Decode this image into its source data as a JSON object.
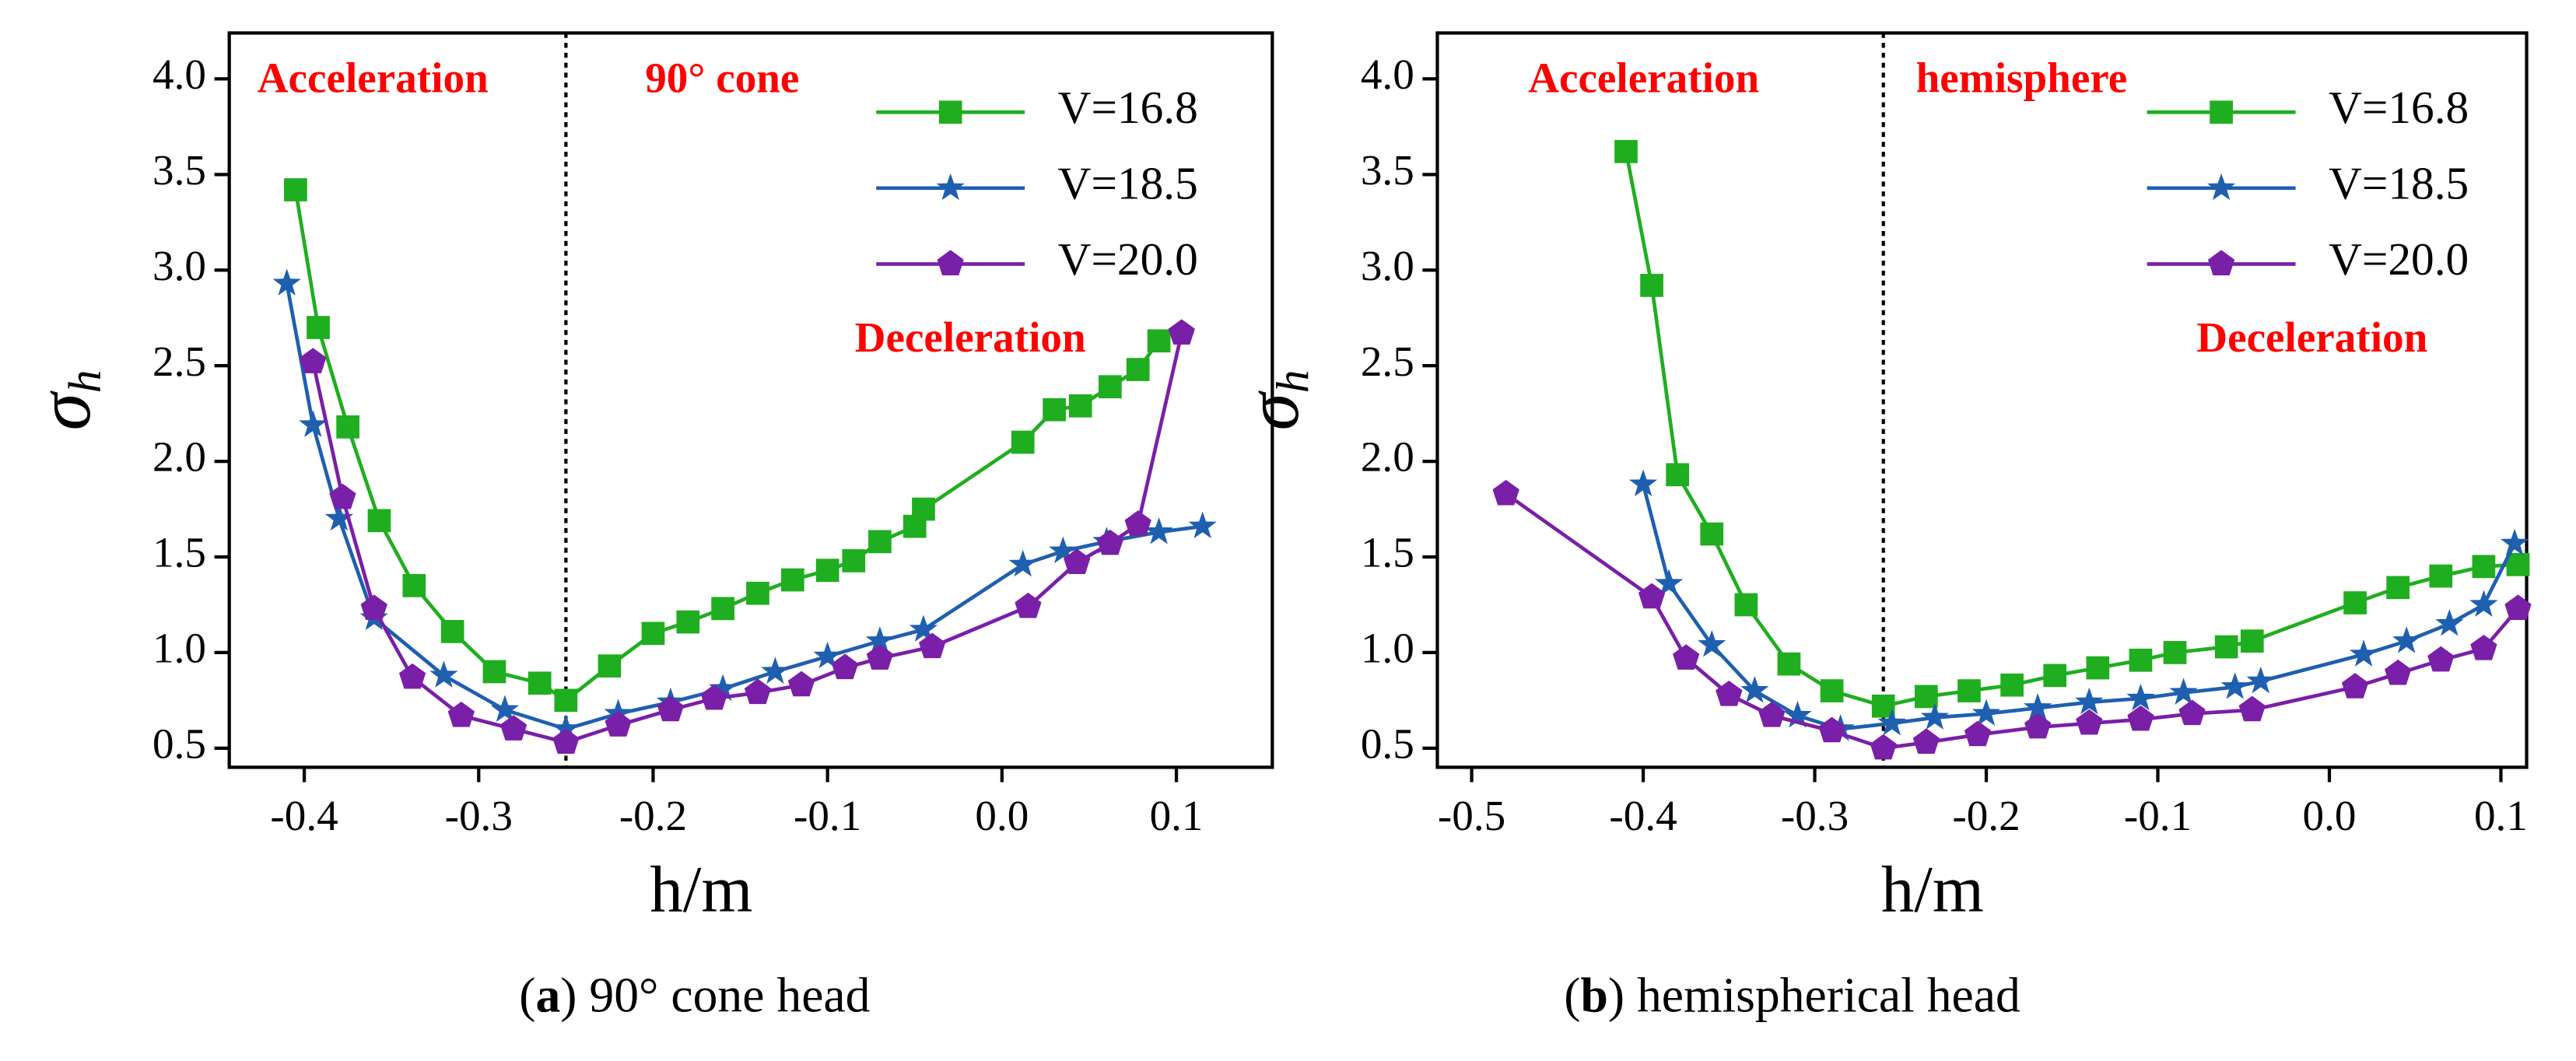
{
  "chart_data": [
    {
      "type": "line",
      "caption": [
        "(",
        "a",
        ") 90° cone head"
      ],
      "xlabel": "h/m",
      "ylabel": {
        "symbol": "σ",
        "subscript": "h"
      },
      "annotations": [
        "Acceleration",
        "90° cone",
        "Deceleration"
      ],
      "vline": -0.25,
      "xlim": [
        -0.443,
        0.155
      ],
      "ylim": [
        0.4,
        4.24
      ],
      "xticks": [
        -0.4,
        -0.3,
        -0.2,
        -0.1,
        {
          "value": 0,
          "label": "0.0"
        },
        0.1
      ],
      "yticks": [
        0.5,
        {
          "value": 1,
          "label": "1.0"
        },
        1.5,
        {
          "value": 2,
          "label": "2.0"
        },
        2.5,
        {
          "value": 3,
          "label": "3.0"
        },
        3.5,
        {
          "value": 4,
          "label": "4.0"
        }
      ],
      "legend": "upper right",
      "series": [
        {
          "name": "V=16.8",
          "color": "#1fae1f",
          "marker": "square",
          "x": [
            -0.405,
            -0.392,
            -0.375,
            -0.357,
            -0.337,
            -0.315,
            -0.291,
            -0.265,
            -0.25,
            -0.225,
            -0.2,
            -0.18,
            -0.16,
            -0.14,
            -0.12,
            -0.1,
            -0.085,
            -0.07,
            -0.05,
            -0.045,
            0.012,
            0.03,
            0.045,
            0.062,
            0.078,
            0.09
          ],
          "values": [
            3.42,
            2.7,
            2.18,
            1.69,
            1.35,
            1.11,
            0.9,
            0.84,
            0.75,
            0.93,
            1.1,
            1.16,
            1.23,
            1.31,
            1.38,
            1.43,
            1.48,
            1.58,
            1.66,
            1.75,
            2.1,
            2.27,
            2.29,
            2.39,
            2.48,
            2.63
          ]
        },
        {
          "name": "V=18.5",
          "color": "#1f5fb0",
          "marker": "star",
          "x": [
            -0.41,
            -0.395,
            -0.38,
            -0.36,
            -0.32,
            -0.285,
            -0.25,
            -0.22,
            -0.19,
            -0.16,
            -0.13,
            -0.1,
            -0.07,
            -0.045,
            0.012,
            0.035,
            0.06,
            0.09,
            0.115
          ],
          "values": [
            2.93,
            2.19,
            1.7,
            1.18,
            0.88,
            0.7,
            0.6,
            0.68,
            0.74,
            0.81,
            0.9,
            0.98,
            1.06,
            1.12,
            1.46,
            1.53,
            1.58,
            1.63,
            1.66
          ]
        },
        {
          "name": "V=20.0",
          "color": "#7a1fa8",
          "marker": "pentagon",
          "x": [
            -0.395,
            -0.378,
            -0.36,
            -0.338,
            -0.31,
            -0.28,
            -0.25,
            -0.22,
            -0.19,
            -0.165,
            -0.14,
            -0.115,
            -0.09,
            -0.07,
            -0.04,
            0.015,
            0.043,
            0.062,
            0.078,
            0.103
          ],
          "values": [
            2.52,
            1.81,
            1.23,
            0.87,
            0.67,
            0.6,
            0.53,
            0.62,
            0.7,
            0.76,
            0.79,
            0.83,
            0.92,
            0.97,
            1.03,
            1.24,
            1.47,
            1.57,
            1.67,
            2.67
          ]
        }
      ]
    },
    {
      "type": "line",
      "caption": [
        "(",
        "b",
        ") hemispherical head"
      ],
      "xlabel": "h/m",
      "ylabel": {
        "symbol": "σ",
        "subscript": "h"
      },
      "annotations": [
        "Acceleration",
        "hemisphere",
        "Deceleration"
      ],
      "vline": -0.26,
      "xlim": [
        -0.52,
        0.115
      ],
      "ylim": [
        0.4,
        4.24
      ],
      "xticks": [
        -0.5,
        -0.4,
        -0.3,
        -0.2,
        -0.1,
        {
          "value": 0,
          "label": "0.0"
        },
        0.1
      ],
      "yticks": [
        0.5,
        {
          "value": 1,
          "label": "1.0"
        },
        1.5,
        {
          "value": 2,
          "label": "2.0"
        },
        2.5,
        {
          "value": 3,
          "label": "3.0"
        },
        3.5,
        {
          "value": 4,
          "label": "4.0"
        }
      ],
      "legend": "upper right",
      "series": [
        {
          "name": "V=16.8",
          "color": "#1fae1f",
          "marker": "square",
          "x": [
            -0.41,
            -0.395,
            -0.38,
            -0.36,
            -0.34,
            -0.315,
            -0.29,
            -0.26,
            -0.235,
            -0.21,
            -0.185,
            -0.16,
            -0.135,
            -0.11,
            -0.09,
            -0.06,
            -0.045,
            0.015,
            0.04,
            0.065,
            0.09,
            0.11
          ],
          "values": [
            3.62,
            2.92,
            1.93,
            1.62,
            1.25,
            0.94,
            0.8,
            0.72,
            0.77,
            0.8,
            0.83,
            0.88,
            0.92,
            0.96,
            1.0,
            1.03,
            1.06,
            1.26,
            1.34,
            1.4,
            1.45,
            1.46
          ]
        },
        {
          "name": "V=18.5",
          "color": "#1f5fb0",
          "marker": "star",
          "x": [
            -0.4,
            -0.385,
            -0.36,
            -0.335,
            -0.31,
            -0.285,
            -0.255,
            -0.23,
            -0.2,
            -0.17,
            -0.14,
            -0.11,
            -0.085,
            -0.055,
            -0.04,
            0.02,
            0.045,
            0.07,
            0.09,
            0.108
          ],
          "values": [
            1.88,
            1.36,
            1.04,
            0.8,
            0.67,
            0.6,
            0.63,
            0.66,
            0.68,
            0.71,
            0.74,
            0.76,
            0.79,
            0.82,
            0.85,
            0.99,
            1.06,
            1.15,
            1.25,
            1.57
          ]
        },
        {
          "name": "V=20.0",
          "color": "#7a1fa8",
          "marker": "pentagon",
          "x": [
            -0.48,
            -0.395,
            -0.375,
            -0.35,
            -0.325,
            -0.29,
            -0.26,
            -0.235,
            -0.205,
            -0.17,
            -0.14,
            -0.11,
            -0.08,
            -0.045,
            0.015,
            0.04,
            0.065,
            0.09,
            0.11
          ],
          "values": [
            1.83,
            1.29,
            0.97,
            0.78,
            0.67,
            0.59,
            0.5,
            0.53,
            0.57,
            0.61,
            0.63,
            0.65,
            0.68,
            0.7,
            0.82,
            0.89,
            0.96,
            1.02,
            1.23
          ]
        }
      ]
    }
  ]
}
